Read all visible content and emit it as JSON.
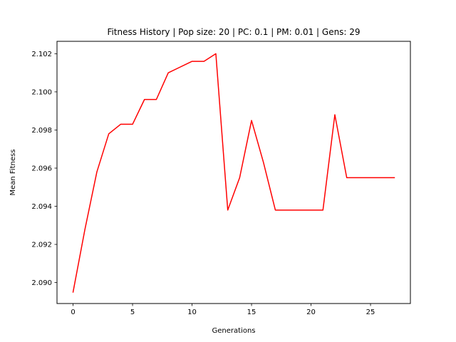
{
  "chart_data": {
    "type": "line",
    "title": "Fitness History | Pop size: 20 | PC: 0.1 | PM: 0.01 | Gens: 29",
    "xlabel": "Generations",
    "ylabel": "Mean Fitness",
    "xlim": [
      -1.35,
      28.35
    ],
    "ylim": [
      2.0889,
      2.10265
    ],
    "xticks": [
      0,
      5,
      10,
      15,
      20,
      25
    ],
    "yticks": [
      2.09,
      2.092,
      2.094,
      2.096,
      2.098,
      2.1,
      2.102
    ],
    "xtick_labels": [
      "0",
      "5",
      "10",
      "15",
      "20",
      "25"
    ],
    "ytick_labels": [
      "2.090",
      "2.092",
      "2.094",
      "2.096",
      "2.098",
      "2.100",
      "2.102"
    ],
    "grid": false,
    "legend": "none",
    "series": [
      {
        "color": "#ff0000",
        "x": [
          0,
          1,
          2,
          3,
          4,
          5,
          6,
          7,
          8,
          9,
          10,
          11,
          12,
          13,
          14,
          15,
          16,
          17,
          18,
          19,
          20,
          21,
          22,
          23,
          24,
          25,
          26,
          27
        ],
        "y": [
          2.0895,
          2.0928,
          2.0958,
          2.0978,
          2.0983,
          2.0983,
          2.0996,
          2.0996,
          2.101,
          2.1013,
          2.1016,
          2.1016,
          2.102,
          2.0938,
          2.0955,
          2.0985,
          2.0963,
          2.0938,
          2.0938,
          2.0938,
          2.0938,
          2.0938,
          2.0988,
          2.0955,
          2.0955,
          2.0955,
          2.0955,
          2.0955
        ]
      }
    ]
  }
}
